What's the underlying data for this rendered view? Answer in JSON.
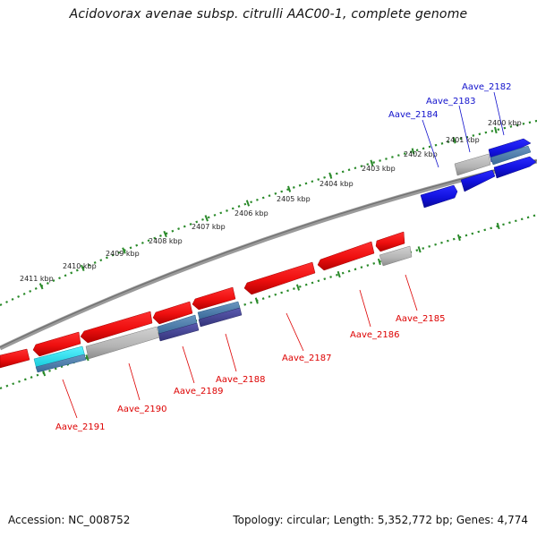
{
  "header": {
    "title": "Acidovorax avenae subsp. citrulli AAC00-1, complete genome"
  },
  "footer": {
    "accession": "Accession: NC_008752",
    "summary": "Topology: circular; Length: 5,352,772 bp; Genes: 4,774"
  },
  "colors": {
    "backbone": "#8a8a8a",
    "tick": "#2a8a2a",
    "gene_red": "#ee1111",
    "gene_blue": "#1111dd",
    "gene_gray": "#b4b4b4",
    "gene_steel": "#4f7eaa",
    "gene_purple": "#4a4a9a",
    "gene_cyan": "#22e0ee",
    "label_red": "#dd0000",
    "label_blue": "#1111cc"
  },
  "scale": {
    "outer_kbp_labels": [
      "2400 kbp",
      "2401 kbp",
      "2402 kbp",
      "2403 kbp",
      "2404 kbp",
      "2405 kbp",
      "2406 kbp",
      "2407 kbp",
      "2408 kbp",
      "2409 kbp",
      "2410 kbp",
      "2411 kbp"
    ]
  },
  "genes": {
    "forward": [
      {
        "name": "Aave_2182",
        "color": "blue"
      },
      {
        "name": "Aave_2183",
        "color": "gray"
      },
      {
        "name": "Aave_2184",
        "color": "blue"
      }
    ],
    "reverse": [
      {
        "name": "Aave_2185",
        "color": "red"
      },
      {
        "name": "Aave_2186",
        "color": "red"
      },
      {
        "name": "Aave_2187",
        "color": "red"
      },
      {
        "name": "Aave_2188",
        "color": "red"
      },
      {
        "name": "Aave_2189",
        "color": "red"
      },
      {
        "name": "Aave_2190",
        "color": "red"
      },
      {
        "name": "Aave_2191",
        "color": "red"
      }
    ]
  }
}
